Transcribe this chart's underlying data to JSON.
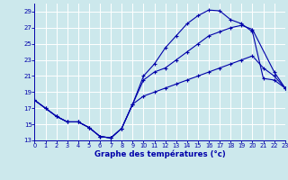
{
  "title": "Graphe des températures (°c)",
  "bg_color": "#cce8ec",
  "grid_color": "#ffffff",
  "line_color": "#0000aa",
  "xlim": [
    0,
    23
  ],
  "ylim": [
    13,
    30
  ],
  "yticks": [
    13,
    15,
    17,
    19,
    21,
    23,
    25,
    27,
    29
  ],
  "xticks": [
    0,
    1,
    2,
    3,
    4,
    5,
    6,
    7,
    8,
    9,
    10,
    11,
    12,
    13,
    14,
    15,
    16,
    17,
    18,
    19,
    20,
    21,
    22,
    23
  ],
  "curve1_x": [
    0,
    1,
    2,
    3,
    4,
    5,
    6,
    7,
    8,
    9,
    10,
    11,
    12,
    13,
    14,
    15,
    16,
    17,
    18,
    19,
    20,
    21,
    22,
    23
  ],
  "curve1_y": [
    18.0,
    17.0,
    16.0,
    15.3,
    15.3,
    14.6,
    13.5,
    13.3,
    14.5,
    17.5,
    21.0,
    22.5,
    24.5,
    26.0,
    27.5,
    28.5,
    29.2,
    29.1,
    28.0,
    27.5,
    26.5,
    20.7,
    20.5,
    19.5
  ],
  "curve2_x": [
    0,
    2,
    3,
    4,
    5,
    6,
    7,
    8,
    9,
    10,
    11,
    12,
    13,
    14,
    15,
    16,
    17,
    18,
    19,
    20,
    22,
    23
  ],
  "curve2_y": [
    18.0,
    16.0,
    15.3,
    15.3,
    14.6,
    13.5,
    13.3,
    14.5,
    17.5,
    20.5,
    21.5,
    22.0,
    23.0,
    24.0,
    25.0,
    26.0,
    26.5,
    27.0,
    27.3,
    26.8,
    21.5,
    19.5
  ],
  "curve3_x": [
    0,
    1,
    2,
    3,
    4,
    5,
    6,
    7,
    8,
    9,
    10,
    11,
    12,
    13,
    14,
    15,
    16,
    17,
    18,
    19,
    20,
    21,
    22,
    23
  ],
  "curve3_y": [
    18.0,
    17.0,
    16.0,
    15.3,
    15.3,
    14.6,
    13.5,
    13.3,
    14.5,
    17.5,
    18.5,
    19.0,
    19.5,
    20.0,
    20.5,
    21.0,
    21.5,
    22.0,
    22.5,
    23.0,
    23.5,
    22.0,
    21.0,
    19.5
  ]
}
